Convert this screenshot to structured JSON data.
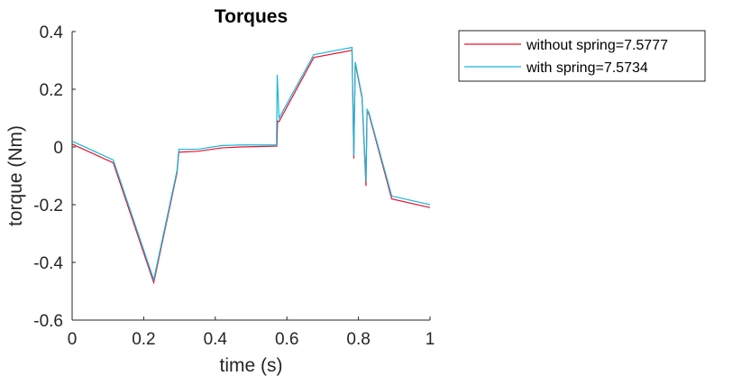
{
  "chart_data": {
    "type": "line",
    "title": "Torques",
    "xlabel": "time (s)",
    "ylabel": "torque (Nm)",
    "xlim": [
      0,
      1
    ],
    "ylim": [
      -0.6,
      0.4
    ],
    "xticks": [
      0,
      0.2,
      0.4,
      0.6,
      0.8,
      1
    ],
    "xtick_labels": [
      "0",
      "0.2",
      "0.4",
      "0.6",
      "0.8",
      "1"
    ],
    "yticks": [
      0.4,
      0.2,
      0,
      -0.2,
      -0.4,
      -0.6
    ],
    "ytick_labels": [
      "0.4",
      "0.2",
      "0",
      "-0.2",
      "-0.4",
      "-0.6"
    ],
    "grid": false,
    "legend_position": "outside-right-top",
    "series": [
      {
        "name": "without spring=7.5777",
        "color": "#e8132a",
        "x": [
          0,
          0.115,
          0.228,
          0.293,
          0.298,
          0.35,
          0.42,
          0.47,
          0.572,
          0.574,
          0.578,
          0.675,
          0.782,
          0.787,
          0.791,
          0.81,
          0.821,
          0.824,
          0.829,
          0.893,
          1.0
        ],
        "y": [
          0.01,
          -0.055,
          -0.47,
          -0.09,
          -0.018,
          -0.015,
          -0.003,
          0.0,
          0.003,
          0.09,
          0.088,
          0.31,
          0.335,
          -0.04,
          0.29,
          0.17,
          -0.135,
          0.12,
          0.115,
          -0.18,
          -0.21
        ]
      },
      {
        "name": "with spring=7.5734",
        "color": "#16b8dd",
        "x": [
          0,
          0.115,
          0.228,
          0.293,
          0.298,
          0.35,
          0.42,
          0.47,
          0.571,
          0.573,
          0.578,
          0.675,
          0.782,
          0.787,
          0.791,
          0.81,
          0.821,
          0.824,
          0.829,
          0.893,
          1.0
        ],
        "y": [
          0.02,
          -0.045,
          -0.46,
          -0.082,
          -0.008,
          -0.008,
          0.005,
          0.007,
          0.007,
          0.25,
          0.1,
          0.32,
          0.345,
          -0.03,
          0.295,
          0.175,
          -0.12,
          0.13,
          0.12,
          -0.17,
          -0.2
        ]
      }
    ]
  }
}
